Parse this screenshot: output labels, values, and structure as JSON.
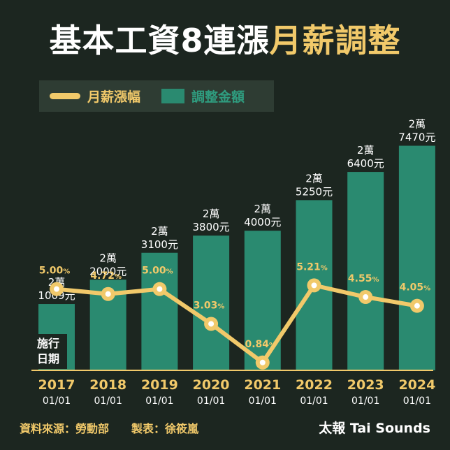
{
  "title": {
    "part1": "基本工資",
    "part2": "8",
    "part3": "連漲",
    "part4": "月薪調整"
  },
  "legend": {
    "line_label": "月薪漲幅",
    "bar_label": "調整金額"
  },
  "date_badge": {
    "line1": "施行",
    "line2": "日期"
  },
  "footer": {
    "source_label": "資料來源：勞動部",
    "maker_label": "製表：徐筱嵐",
    "brand": "太報 Tai Sounds"
  },
  "colors": {
    "background": "#1c2620",
    "bar": "#2a8a70",
    "line": "#f1c96a",
    "text": "#ffffff"
  },
  "chart_data": {
    "type": "bar",
    "title": "基本工資8連漲月薪調整",
    "categories": [
      "2017",
      "2018",
      "2019",
      "2020",
      "2021",
      "2022",
      "2023",
      "2024"
    ],
    "dates": [
      "01/01",
      "01/01",
      "01/01",
      "01/01",
      "01/01",
      "01/01",
      "01/01",
      "01/01"
    ],
    "series": [
      {
        "name": "調整金額",
        "type": "bar",
        "values": [
          21009,
          22000,
          23100,
          23800,
          24000,
          25250,
          26400,
          27470
        ],
        "labels_line1": [
          "2萬",
          "2萬",
          "2萬",
          "2萬",
          "2萬",
          "2萬",
          "2萬",
          "2萬"
        ],
        "labels_line2": [
          "1009元",
          "2000元",
          "3100元",
          "3800元",
          "4000元",
          "5250元",
          "6400元",
          "7470元"
        ]
      },
      {
        "name": "月薪漲幅",
        "type": "line",
        "values": [
          5.0,
          4.72,
          5.0,
          3.03,
          0.84,
          5.21,
          4.55,
          4.05
        ],
        "labels": [
          "5.00",
          "4.72",
          "5.00",
          "3.03",
          "0.84",
          "5.21",
          "4.55",
          "4.05"
        ],
        "unit": "%"
      }
    ],
    "bar_ylim": [
      18300,
      28000
    ],
    "line_ylim": [
      0,
      9.5
    ]
  }
}
